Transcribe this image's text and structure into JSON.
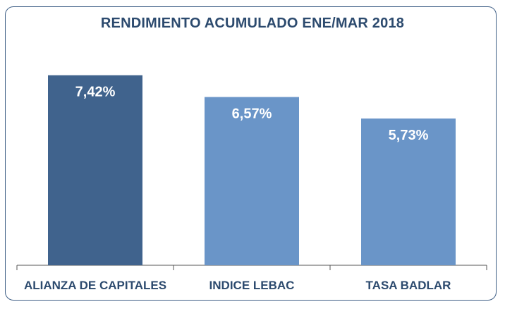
{
  "chart_data": {
    "type": "bar",
    "title": "RENDIMIENTO ACUMULADO ENE/MAR 2018",
    "categories": [
      "ALIANZA DE CAPITALES",
      "INDICE LEBAC",
      "TASA BADLAR"
    ],
    "values": [
      7.42,
      6.57,
      5.73
    ],
    "value_labels": [
      "7,42%",
      "6,57%",
      "5,73%"
    ],
    "bar_colors": [
      "#40638d",
      "#6a95c8",
      "#6a95c8"
    ],
    "ylim": [
      0,
      9.2
    ],
    "grid": false,
    "legend": "none"
  }
}
